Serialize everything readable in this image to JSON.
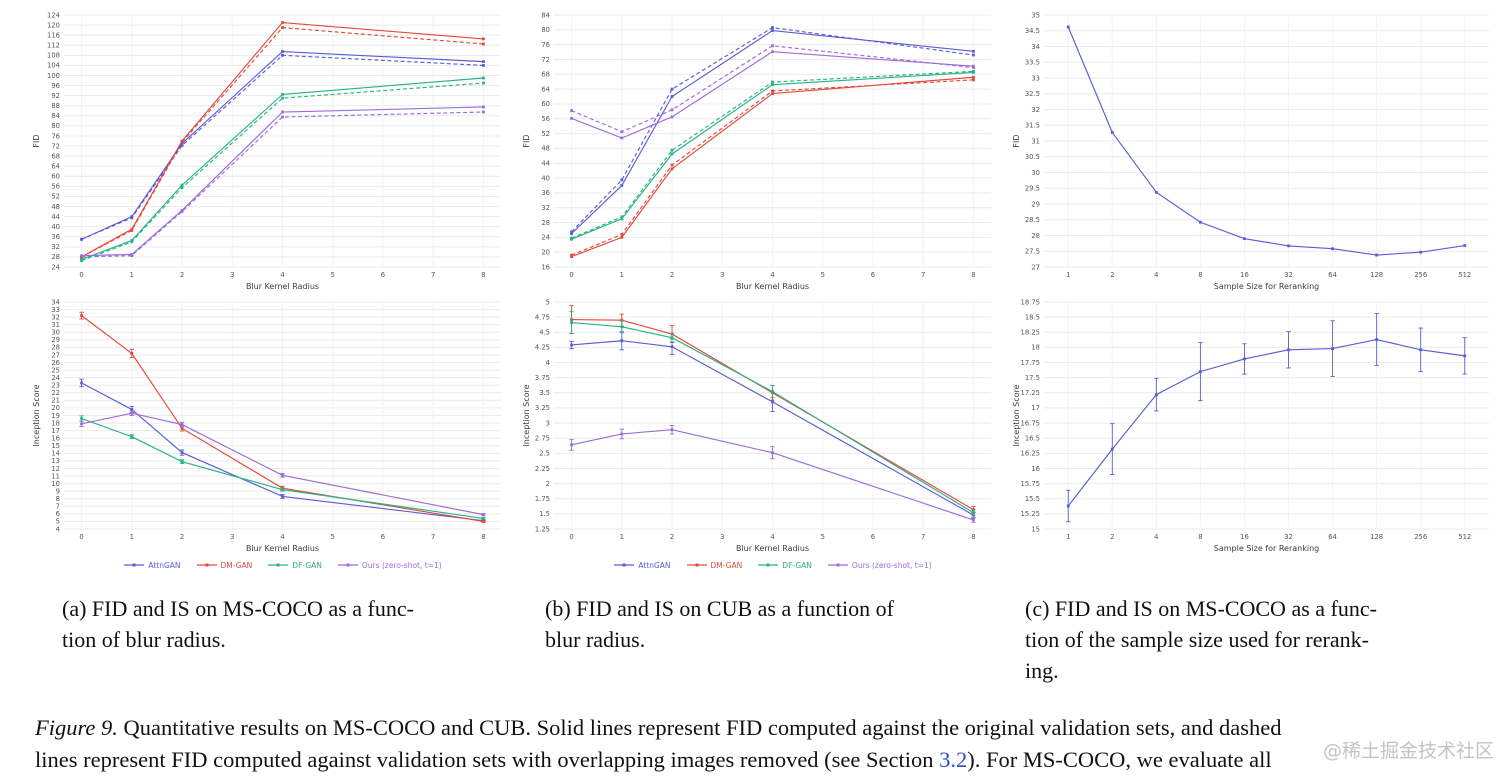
{
  "watermark": "@稀土掘金技术社区",
  "colors": {
    "attngan": "#5a5ed4",
    "dmgan": "#e14a3c",
    "dfgan": "#29b286",
    "ours": "#9c6cd9",
    "grid_h": "#eceaea",
    "grid_v": "#f3f1f1",
    "tick_label": "#555555",
    "axis_title": "#3c3c3c",
    "link": "#2b4bc8"
  },
  "legend": [
    {
      "label": "AttnGAN",
      "color": "attngan"
    },
    {
      "label": "DM-GAN",
      "color": "dmgan"
    },
    {
      "label": "DF-GAN",
      "color": "dfgan"
    },
    {
      "label": "Ours (zero-shot, t=1)",
      "color": "ours"
    }
  ],
  "captions": {
    "a": {
      "lines": [
        "(a) FID and IS on MS-COCO as a func-",
        "tion of blur radius."
      ]
    },
    "b": {
      "lines": [
        "(b) FID and IS on CUB as a function of",
        "blur radius."
      ]
    },
    "c": {
      "lines": [
        "(c) FID and IS on MS-COCO as a func-",
        "tion of the sample size used for rerank-",
        "ing."
      ]
    }
  },
  "figure_caption": {
    "line1_label": "Figure 9.",
    "line1_rest": " Quantitative results on MS-COCO and CUB. Solid lines represent FID computed against the original validation sets, and dashed",
    "line2_before": "lines represent FID computed against validation sets with overlapping images removed (see Section ",
    "link": "3.2",
    "line2_after": "). For MS-COCO, we evaluate all"
  },
  "chart_data": [
    {
      "id": "fid-mscoco-blur",
      "type": "line",
      "xlabel": "Blur Kernel Radius",
      "ylabel": "FID",
      "x_mode": "linear",
      "x_ticks": [
        0,
        1,
        2,
        3,
        4,
        5,
        6,
        7,
        8
      ],
      "x_values": [
        0,
        1,
        2,
        4,
        8
      ],
      "y_min": 24,
      "y_max": 124,
      "y_step": 4,
      "series": [
        {
          "name": "AttnGAN (dedup)",
          "color": "attngan",
          "dash": true,
          "values": [
            35,
            43.5,
            72.2,
            108,
            104
          ]
        },
        {
          "name": "DM-GAN (dedup)",
          "color": "dmgan",
          "dash": true,
          "values": [
            28,
            38.5,
            73.5,
            119,
            112.5
          ]
        },
        {
          "name": "DF-GAN (dedup)",
          "color": "dfgan",
          "dash": true,
          "values": [
            26.5,
            34,
            55.5,
            91,
            97
          ]
        },
        {
          "name": "Ours (dedup)",
          "color": "ours",
          "dash": true,
          "values": [
            28,
            28.5,
            46,
            83.5,
            85.5
          ]
        },
        {
          "name": "AttnGAN",
          "color": "attngan",
          "dash": false,
          "values": [
            35,
            44,
            73,
            109.5,
            105.5
          ]
        },
        {
          "name": "DM-GAN",
          "color": "dmgan",
          "dash": false,
          "values": [
            28,
            39,
            74,
            121,
            114.5
          ]
        },
        {
          "name": "DF-GAN",
          "color": "dfgan",
          "dash": false,
          "values": [
            27,
            34.5,
            56.5,
            92.5,
            99
          ]
        },
        {
          "name": "Ours (zero-shot, t=1)",
          "color": "ours",
          "dash": false,
          "values": [
            28.5,
            29,
            46.5,
            85.5,
            87.5
          ]
        }
      ]
    },
    {
      "id": "is-mscoco-blur",
      "type": "line",
      "xlabel": "Blur Kernel Radius",
      "ylabel": "Inception Score",
      "x_mode": "linear",
      "x_ticks": [
        0,
        1,
        2,
        3,
        4,
        5,
        6,
        7,
        8
      ],
      "x_values": [
        0,
        1,
        2,
        4,
        8
      ],
      "y_min": 4,
      "y_max": 34,
      "y_step": 1,
      "series": [
        {
          "name": "AttnGAN",
          "color": "attngan",
          "dash": false,
          "values": [
            23.3,
            19.8,
            14.1,
            8.3,
            5.1
          ],
          "errors": [
            0.5,
            0.4,
            0.35,
            0.25,
            0.12
          ]
        },
        {
          "name": "DM-GAN",
          "color": "dmgan",
          "dash": false,
          "values": [
            32.2,
            27.2,
            17.3,
            9.4,
            5.0
          ],
          "errors": [
            0.45,
            0.55,
            0.35,
            0.25,
            0.12
          ]
        },
        {
          "name": "DF-GAN",
          "color": "dfgan",
          "dash": false,
          "values": [
            18.6,
            16.2,
            12.9,
            9.2,
            5.4
          ],
          "errors": [
            0.35,
            0.25,
            0.25,
            0.2,
            0.12
          ]
        },
        {
          "name": "Ours (zero-shot, t=1)",
          "color": "ours",
          "dash": false,
          "values": [
            17.9,
            19.3,
            17.8,
            11.1,
            5.9
          ],
          "errors": [
            0.35,
            0.3,
            0.3,
            0.25,
            0.15
          ]
        }
      ]
    },
    {
      "id": "fid-cub-blur",
      "type": "line",
      "xlabel": "Blur Kernel Radius",
      "ylabel": "FID",
      "x_mode": "linear",
      "x_ticks": [
        0,
        1,
        2,
        3,
        4,
        5,
        6,
        7,
        8
      ],
      "x_values": [
        0,
        1,
        2,
        4,
        8
      ],
      "y_min": 16,
      "y_max": 84,
      "y_step": 4,
      "series": [
        {
          "name": "AttnGAN (dedup)",
          "color": "attngan",
          "dash": true,
          "values": [
            25.5,
            39.5,
            64,
            80.6,
            73.2
          ]
        },
        {
          "name": "DM-GAN (dedup)",
          "color": "dmgan",
          "dash": true,
          "values": [
            19.2,
            24.8,
            43.5,
            63.5,
            66.5
          ]
        },
        {
          "name": "DF-GAN (dedup)",
          "color": "dfgan",
          "dash": true,
          "values": [
            23.8,
            29.5,
            47.5,
            65.9,
            68.8
          ]
        },
        {
          "name": "Ours (dedup)",
          "color": "ours",
          "dash": true,
          "values": [
            58.2,
            52.5,
            58.4,
            75.7,
            69.8
          ]
        },
        {
          "name": "AttnGAN",
          "color": "attngan",
          "dash": false,
          "values": [
            25,
            38,
            62,
            79.8,
            74.2
          ]
        },
        {
          "name": "DM-GAN",
          "color": "dmgan",
          "dash": false,
          "values": [
            18.8,
            24,
            42.5,
            62.8,
            67.2
          ]
        },
        {
          "name": "DF-GAN",
          "color": "dfgan",
          "dash": false,
          "values": [
            23.5,
            29,
            46.5,
            65.2,
            68.5
          ]
        },
        {
          "name": "Ours (zero-shot, t=1)",
          "color": "ours",
          "dash": false,
          "values": [
            56.1,
            50.8,
            56.5,
            74.1,
            70.2
          ]
        }
      ]
    },
    {
      "id": "is-cub-blur",
      "type": "line",
      "xlabel": "Blur Kernel Radius",
      "ylabel": "Inception Score",
      "x_mode": "linear",
      "x_ticks": [
        0,
        1,
        2,
        3,
        4,
        5,
        6,
        7,
        8
      ],
      "x_values": [
        0,
        1,
        2,
        4,
        8
      ],
      "y_min": 1.25,
      "y_max": 5,
      "y_step": 0.25,
      "series": [
        {
          "name": "AttnGAN",
          "color": "attngan",
          "dash": false,
          "values": [
            4.29,
            4.36,
            4.26,
            3.35,
            1.48
          ],
          "errors": [
            0.06,
            0.15,
            0.13,
            0.16,
            0.05
          ]
        },
        {
          "name": "DM-GAN",
          "color": "dmgan",
          "dash": false,
          "values": [
            4.71,
            4.7,
            4.47,
            3.5,
            1.57
          ],
          "errors": [
            0.23,
            0.1,
            0.14,
            0.12,
            0.05
          ]
        },
        {
          "name": "DF-GAN",
          "color": "dfgan",
          "dash": false,
          "values": [
            4.66,
            4.59,
            4.41,
            3.52,
            1.52
          ],
          "errors": [
            0.18,
            0.1,
            0.07,
            0.1,
            0.05
          ]
        },
        {
          "name": "Ours (zero-shot, t=1)",
          "color": "ours",
          "dash": false,
          "values": [
            2.64,
            2.82,
            2.89,
            2.51,
            1.4
          ],
          "errors": [
            0.09,
            0.08,
            0.07,
            0.1,
            0.04
          ]
        }
      ]
    },
    {
      "id": "fid-mscoco-rerank",
      "type": "line",
      "xlabel": "Sample Size for Reranking",
      "ylabel": "FID",
      "x_mode": "category",
      "x_ticks": [
        "1",
        "2",
        "4",
        "8",
        "16",
        "32",
        "64",
        "128",
        "256",
        "512"
      ],
      "y_min": 27,
      "y_max": 35,
      "y_step": 0.5,
      "series": [
        {
          "name": "Ours",
          "color": "attngan",
          "dash": false,
          "values": [
            34.62,
            31.27,
            29.37,
            28.42,
            27.9,
            27.67,
            27.58,
            27.38,
            27.47,
            27.68
          ]
        }
      ]
    },
    {
      "id": "is-mscoco-rerank",
      "type": "line",
      "xlabel": "Sample Size for Reranking",
      "ylabel": "Inception Score",
      "x_mode": "category",
      "x_ticks": [
        "1",
        "2",
        "4",
        "8",
        "16",
        "32",
        "64",
        "128",
        "256",
        "512"
      ],
      "y_min": 15,
      "y_max": 18.75,
      "y_step": 0.25,
      "series": [
        {
          "name": "Ours",
          "color": "attngan",
          "dash": false,
          "values": [
            15.38,
            16.32,
            17.22,
            17.6,
            17.81,
            17.96,
            17.98,
            18.13,
            17.96,
            17.86
          ],
          "errors": [
            0.26,
            0.42,
            0.27,
            0.48,
            0.25,
            0.3,
            0.46,
            0.43,
            0.36,
            0.3
          ]
        }
      ]
    }
  ]
}
